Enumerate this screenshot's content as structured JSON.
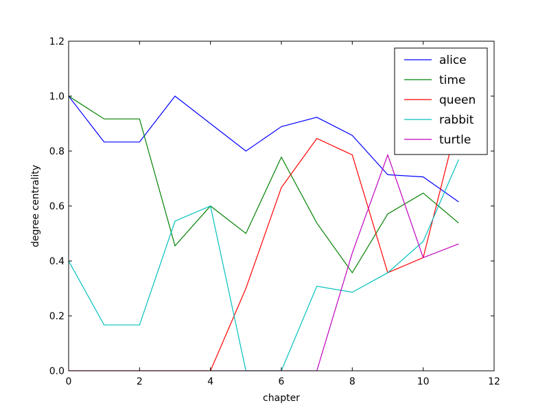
{
  "chart_data": {
    "type": "line",
    "xlabel": "chapter",
    "ylabel": "degree centrality",
    "xlim": [
      0,
      12
    ],
    "ylim": [
      0,
      1.2
    ],
    "xticks": [
      "0",
      "2",
      "4",
      "6",
      "8",
      "10",
      "12"
    ],
    "yticks": [
      "0.0",
      "0.2",
      "0.4",
      "0.6",
      "0.8",
      "1.0",
      "1.2"
    ],
    "grid": false,
    "legend_position": "top-right",
    "x": [
      0,
      1,
      2,
      3,
      4,
      5,
      6,
      7,
      8,
      9,
      10,
      11
    ],
    "series": [
      {
        "name": "alice",
        "color": "#0000ff",
        "values": [
          1.0,
          0.833,
          0.833,
          1.0,
          0.9,
          0.8,
          0.889,
          0.923,
          0.857,
          0.714,
          0.706,
          0.615
        ]
      },
      {
        "name": "time",
        "color": "#008000",
        "values": [
          1.0,
          0.917,
          0.917,
          0.455,
          0.6,
          0.5,
          0.778,
          0.538,
          0.357,
          0.571,
          0.647,
          0.538
        ]
      },
      {
        "name": "queen",
        "color": "#ff0000",
        "values": [
          0,
          0,
          0,
          0,
          0,
          0.3,
          0.667,
          0.846,
          0.786,
          0.357,
          0.412,
          0.923
        ]
      },
      {
        "name": "rabbit",
        "color": "#00bfbf",
        "values": [
          0.4,
          0.167,
          0.167,
          0.545,
          0.6,
          0,
          0,
          0.308,
          0.286,
          0.357,
          0.471,
          0.769
        ]
      },
      {
        "name": "turtle",
        "color": "#bf00bf",
        "values": [
          0,
          0,
          0,
          0,
          0,
          0,
          0,
          0,
          0.429,
          0.786,
          0.412,
          0.462
        ]
      }
    ]
  }
}
